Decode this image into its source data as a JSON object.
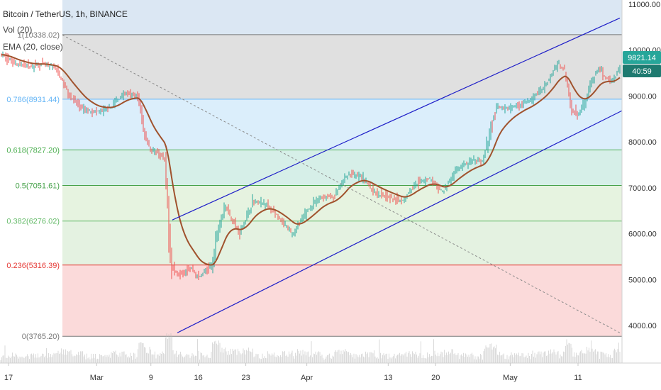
{
  "header": {
    "symbol_line": "Bitcoin / TetherUS, 1h, BINANCE",
    "indicators": [
      "Vol (20)",
      "EMA (20, close)"
    ]
  },
  "price_badges": {
    "last_price": "9821.14",
    "countdown": "40:59"
  },
  "colors": {
    "candle_up": "#26a69a",
    "candle_down": "#ef5350",
    "ema_line": "#a0522d",
    "channel_line": "#1f1fc8",
    "trend_dashed": "#8a8a8a",
    "badge_price": "#26a69a",
    "badge_time": "#1e7a70"
  },
  "chart_data": {
    "type": "line",
    "series": [
      {
        "x": [
          "2020-02-16",
          "2020-02-18",
          "2020-02-20",
          "2020-02-22",
          "2020-02-24",
          "2020-02-26",
          "2020-02-28",
          "2020-03-01",
          "2020-03-03",
          "2020-03-05",
          "2020-03-07",
          "2020-03-08",
          "2020-03-09",
          "2020-03-10",
          "2020-03-11",
          "2020-03-12",
          "2020-03-13",
          "2020-03-14",
          "2020-03-15",
          "2020-03-16",
          "2020-03-17",
          "2020-03-18",
          "2020-03-19",
          "2020-03-20",
          "2020-03-22",
          "2020-03-24",
          "2020-03-26",
          "2020-03-28",
          "2020-03-30",
          "2020-04-01",
          "2020-04-03",
          "2020-04-05",
          "2020-04-07",
          "2020-04-09",
          "2020-04-11",
          "2020-04-13",
          "2020-04-15",
          "2020-04-17",
          "2020-04-19",
          "2020-04-21",
          "2020-04-23",
          "2020-04-25",
          "2020-04-27",
          "2020-04-29",
          "2020-04-30",
          "2020-05-02",
          "2020-05-04",
          "2020-05-06",
          "2020-05-08",
          "2020-05-09",
          "2020-05-10",
          "2020-05-11",
          "2020-05-12",
          "2020-05-13",
          "2020-05-14",
          "2020-05-15",
          "2020-05-16",
          "2020-05-17",
          "2020-05-18"
        ],
        "values": [
          9900,
          9700,
          9650,
          9700,
          9600,
          9000,
          8700,
          8650,
          8750,
          9050,
          9000,
          8200,
          7800,
          7750,
          7600,
          5300,
          5100,
          5200,
          5250,
          5050,
          5200,
          5300,
          6200,
          6600,
          6000,
          6700,
          6650,
          6300,
          6000,
          6500,
          6800,
          6800,
          7300,
          7250,
          6900,
          6800,
          6700,
          7100,
          7200,
          6900,
          7400,
          7550,
          7600,
          8800,
          8700,
          8800,
          8900,
          9200,
          9700,
          9600,
          8700,
          8600,
          8900,
          9300,
          9600,
          9400,
          9300,
          9600,
          9700
        ]
      }
    ],
    "ylim": [
      3500,
      11100
    ],
    "y_ticks": [
      "11000.00",
      "10000.00",
      "9000.00",
      "8000.00",
      "7000.00",
      "6000.00",
      "5000.00",
      "4000.00"
    ],
    "x_ticks": [
      "17",
      "Mar",
      "9",
      "16",
      "23",
      "Apr",
      "13",
      "20",
      "May",
      "11"
    ],
    "fib_levels": [
      {
        "ratio": 1,
        "price": 10338.02,
        "label": "1(10338.02)",
        "color": "#787878",
        "zone": "#dbe7f3"
      },
      {
        "ratio": 0.786,
        "price": 8931.44,
        "label": "0.786(8931.44)",
        "color": "#64b5f6",
        "zone": "#e0e0e0"
      },
      {
        "ratio": 0.618,
        "price": 7827.2,
        "label": "0.618(7827.20)",
        "color": "#4caf50",
        "zone": "#dbeefb"
      },
      {
        "ratio": 0.5,
        "price": 7051.61,
        "label": "0.5(7051.61)",
        "color": "#43a047",
        "zone": "#d6efe8"
      },
      {
        "ratio": 0.382,
        "price": 6276.02,
        "label": "0.382(6276.02)",
        "color": "#66bb6a",
        "zone": "#e6f3e0"
      },
      {
        "ratio": 0.236,
        "price": 5316.39,
        "label": "0.236(5316.39)",
        "color": "#e53935",
        "zone": "#e4f2e1"
      },
      {
        "ratio": 0,
        "price": 3765.2,
        "label": "0(3765.20)",
        "color": "#787878",
        "zone": "#fbdada"
      }
    ]
  }
}
